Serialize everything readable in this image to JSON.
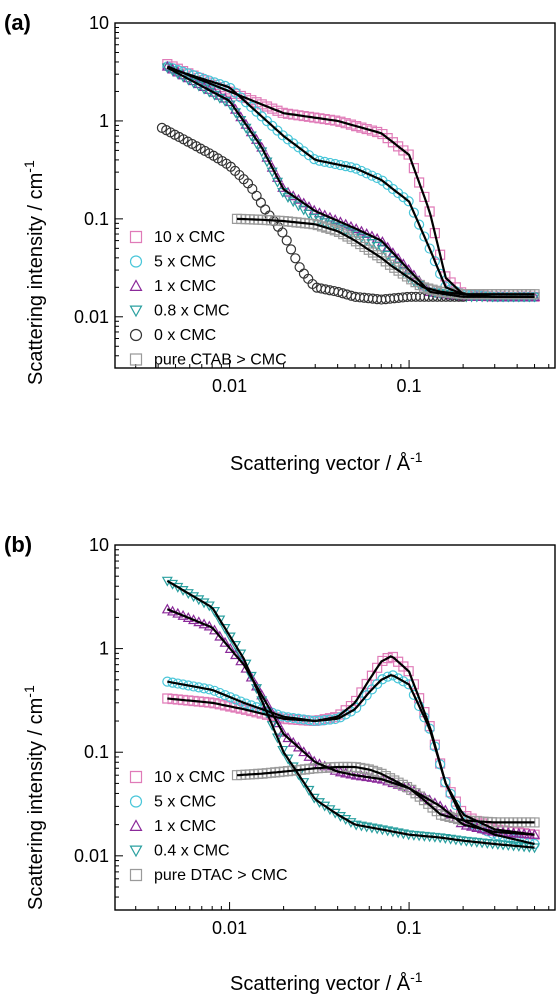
{
  "chart_data": [
    {
      "type": "scatter",
      "panel_label": "(a)",
      "xlabel": "Scattering vector / Å",
      "xlabel_sup": "-1",
      "ylabel": "Scattering intensity / cm",
      "ylabel_sup": "-1",
      "x_scale": "log",
      "y_scale": "log",
      "xlim": [
        0.0023,
        0.65
      ],
      "ylim": [
        0.003,
        10
      ],
      "x_ticks": [
        0.01,
        0.1
      ],
      "x_tick_labels": [
        "0.01",
        "0.1"
      ],
      "y_ticks": [
        0.01,
        0.1,
        1,
        10
      ],
      "y_tick_labels": [
        "0.01",
        "0.1",
        "1",
        "10"
      ],
      "legend_position": "bottom-left",
      "series": [
        {
          "name": "10 x CMC",
          "marker": "square",
          "color": "#e07bb8",
          "x": [
            0.0045,
            0.01,
            0.02,
            0.04,
            0.07,
            0.1,
            0.13,
            0.16,
            0.2,
            0.3,
            0.5
          ],
          "y": [
            3.8,
            2.0,
            1.2,
            1.0,
            0.75,
            0.45,
            0.12,
            0.025,
            0.017,
            0.016,
            0.016
          ]
        },
        {
          "name": "5 x CMC",
          "marker": "circle",
          "color": "#49c6d9",
          "x": [
            0.0045,
            0.01,
            0.02,
            0.03,
            0.05,
            0.07,
            0.1,
            0.13,
            0.16,
            0.2,
            0.3,
            0.5
          ],
          "y": [
            3.6,
            2.2,
            0.7,
            0.4,
            0.33,
            0.25,
            0.15,
            0.05,
            0.02,
            0.017,
            0.016,
            0.016
          ]
        },
        {
          "name": "1 x CMC",
          "marker": "triangle-up",
          "color": "#8b2a9a",
          "x": [
            0.0045,
            0.01,
            0.015,
            0.02,
            0.03,
            0.05,
            0.07,
            0.1,
            0.13,
            0.2,
            0.5
          ],
          "y": [
            3.6,
            1.6,
            0.55,
            0.2,
            0.12,
            0.08,
            0.06,
            0.03,
            0.018,
            0.016,
            0.016
          ]
        },
        {
          "name": "0.8  x CMC",
          "marker": "triangle-down",
          "color": "#2aa0a0",
          "x": [
            0.0045,
            0.01,
            0.015,
            0.02,
            0.03,
            0.05,
            0.07,
            0.1,
            0.13,
            0.2,
            0.5
          ],
          "y": [
            3.5,
            1.5,
            0.5,
            0.18,
            0.1,
            0.07,
            0.05,
            0.025,
            0.018,
            0.016,
            0.016
          ]
        },
        {
          "name": "0 x CMC",
          "marker": "circle",
          "color": "#333333",
          "x": [
            0.0042,
            0.006,
            0.008,
            0.01,
            0.013,
            0.016,
            0.02,
            0.025,
            0.03,
            0.04,
            0.05,
            0.07,
            0.1,
            0.15,
            0.2
          ],
          "y": [
            0.85,
            0.6,
            0.45,
            0.35,
            0.22,
            0.12,
            0.07,
            0.03,
            0.02,
            0.018,
            0.016,
            0.015,
            0.016,
            0.016,
            0.016
          ]
        },
        {
          "name": "pure CTAB > CMC",
          "marker": "square",
          "color": "#9a9a9a",
          "x": [
            0.011,
            0.015,
            0.02,
            0.03,
            0.04,
            0.05,
            0.06,
            0.07,
            0.08,
            0.1,
            0.12,
            0.15,
            0.2,
            0.3,
            0.5
          ],
          "y": [
            0.1,
            0.098,
            0.095,
            0.088,
            0.075,
            0.06,
            0.048,
            0.04,
            0.033,
            0.025,
            0.02,
            0.018,
            0.017,
            0.017,
            0.017
          ]
        }
      ],
      "fits": [
        {
          "x": [
            0.0045,
            0.01,
            0.02,
            0.04,
            0.07,
            0.1,
            0.13,
            0.16,
            0.2,
            0.3,
            0.5
          ],
          "y": [
            3.6,
            2.0,
            1.2,
            1.0,
            0.75,
            0.45,
            0.12,
            0.025,
            0.017,
            0.016,
            0.016
          ]
        },
        {
          "x": [
            0.0045,
            0.01,
            0.02,
            0.03,
            0.05,
            0.07,
            0.1,
            0.13,
            0.16,
            0.2,
            0.3,
            0.5
          ],
          "y": [
            3.5,
            2.2,
            0.7,
            0.4,
            0.33,
            0.25,
            0.15,
            0.05,
            0.02,
            0.017,
            0.016,
            0.016
          ]
        },
        {
          "x": [
            0.0045,
            0.01,
            0.015,
            0.02,
            0.03,
            0.05,
            0.07,
            0.1,
            0.13,
            0.2,
            0.5
          ],
          "y": [
            3.5,
            1.6,
            0.55,
            0.2,
            0.12,
            0.08,
            0.06,
            0.03,
            0.018,
            0.016,
            0.016
          ]
        },
        {
          "x": [
            0.011,
            0.015,
            0.02,
            0.03,
            0.04,
            0.05,
            0.06,
            0.07,
            0.08,
            0.1,
            0.12,
            0.15,
            0.2,
            0.3,
            0.5
          ],
          "y": [
            0.1,
            0.098,
            0.095,
            0.088,
            0.075,
            0.06,
            0.048,
            0.04,
            0.033,
            0.025,
            0.02,
            0.018,
            0.017,
            0.017,
            0.017
          ]
        }
      ]
    },
    {
      "type": "scatter",
      "panel_label": "(b)",
      "xlabel": "Scattering vector / Å",
      "xlabel_sup": "-1",
      "ylabel": "Scattering intensity / cm",
      "ylabel_sup": "-1",
      "x_scale": "log",
      "y_scale": "log",
      "xlim": [
        0.0023,
        0.65
      ],
      "ylim": [
        0.003,
        10
      ],
      "x_ticks": [
        0.01,
        0.1
      ],
      "x_tick_labels": [
        "0.01",
        "0.1"
      ],
      "y_ticks": [
        0.01,
        0.1,
        1,
        10
      ],
      "y_tick_labels": [
        "0.01",
        "0.1",
        "1",
        "10"
      ],
      "legend_position": "bottom-left",
      "series": [
        {
          "name": "10 x CMC",
          "marker": "square",
          "color": "#e07bb8",
          "x": [
            0.0045,
            0.008,
            0.012,
            0.02,
            0.03,
            0.04,
            0.05,
            0.06,
            0.07,
            0.08,
            0.1,
            0.13,
            0.16,
            0.2,
            0.3,
            0.5
          ],
          "y": [
            0.33,
            0.3,
            0.26,
            0.21,
            0.2,
            0.22,
            0.3,
            0.5,
            0.75,
            0.85,
            0.6,
            0.18,
            0.05,
            0.025,
            0.018,
            0.016
          ]
        },
        {
          "name": "5 x CMC",
          "marker": "circle",
          "color": "#49c6d9",
          "x": [
            0.0045,
            0.008,
            0.012,
            0.02,
            0.03,
            0.04,
            0.05,
            0.06,
            0.07,
            0.08,
            0.1,
            0.13,
            0.16,
            0.2,
            0.3,
            0.5
          ],
          "y": [
            0.48,
            0.4,
            0.3,
            0.22,
            0.2,
            0.21,
            0.26,
            0.38,
            0.5,
            0.56,
            0.45,
            0.17,
            0.05,
            0.022,
            0.016,
            0.013
          ]
        },
        {
          "name": "1 x CMC",
          "marker": "triangle-up",
          "color": "#8b2a9a",
          "x": [
            0.0045,
            0.008,
            0.012,
            0.016,
            0.02,
            0.03,
            0.04,
            0.05,
            0.07,
            0.1,
            0.15,
            0.2,
            0.3,
            0.5
          ],
          "y": [
            2.4,
            1.6,
            0.7,
            0.3,
            0.15,
            0.08,
            0.065,
            0.06,
            0.055,
            0.045,
            0.03,
            0.02,
            0.017,
            0.016
          ]
        },
        {
          "name": "0.4 x CMC",
          "marker": "triangle-down",
          "color": "#2aa0a0",
          "x": [
            0.0045,
            0.008,
            0.012,
            0.016,
            0.02,
            0.03,
            0.04,
            0.05,
            0.07,
            0.1,
            0.15,
            0.2,
            0.3,
            0.5
          ],
          "y": [
            4.5,
            2.5,
            0.8,
            0.25,
            0.1,
            0.035,
            0.025,
            0.02,
            0.018,
            0.016,
            0.015,
            0.014,
            0.013,
            0.012
          ]
        },
        {
          "name": "pure DTAC > CMC",
          "marker": "square",
          "color": "#9a9a9a",
          "x": [
            0.011,
            0.015,
            0.02,
            0.03,
            0.04,
            0.05,
            0.06,
            0.07,
            0.08,
            0.1,
            0.12,
            0.15,
            0.2,
            0.3,
            0.5
          ],
          "y": [
            0.06,
            0.062,
            0.065,
            0.07,
            0.072,
            0.072,
            0.068,
            0.062,
            0.055,
            0.045,
            0.035,
            0.025,
            0.022,
            0.021,
            0.021
          ]
        }
      ],
      "fits": [
        {
          "x": [
            0.0045,
            0.008,
            0.012,
            0.02,
            0.03,
            0.04,
            0.05,
            0.06,
            0.07,
            0.08,
            0.1,
            0.13,
            0.16,
            0.2,
            0.3,
            0.5
          ],
          "y": [
            0.33,
            0.3,
            0.26,
            0.21,
            0.2,
            0.22,
            0.3,
            0.5,
            0.75,
            0.85,
            0.6,
            0.18,
            0.05,
            0.025,
            0.018,
            0.016
          ]
        },
        {
          "x": [
            0.0045,
            0.008,
            0.012,
            0.02,
            0.03,
            0.04,
            0.05,
            0.06,
            0.07,
            0.08,
            0.1,
            0.13,
            0.16,
            0.2,
            0.3,
            0.5
          ],
          "y": [
            0.48,
            0.4,
            0.3,
            0.22,
            0.2,
            0.21,
            0.26,
            0.38,
            0.5,
            0.56,
            0.45,
            0.17,
            0.05,
            0.022,
            0.016,
            0.013
          ]
        },
        {
          "x": [
            0.0045,
            0.008,
            0.012,
            0.016,
            0.02,
            0.03,
            0.04,
            0.05,
            0.07,
            0.1,
            0.15,
            0.2,
            0.3,
            0.5
          ],
          "y": [
            2.4,
            1.6,
            0.7,
            0.3,
            0.15,
            0.08,
            0.065,
            0.06,
            0.055,
            0.045,
            0.03,
            0.02,
            0.017,
            0.016
          ]
        },
        {
          "x": [
            0.0045,
            0.008,
            0.012,
            0.016,
            0.02,
            0.03,
            0.04,
            0.05,
            0.07,
            0.1,
            0.15,
            0.2,
            0.3,
            0.5
          ],
          "y": [
            4.5,
            2.5,
            0.8,
            0.25,
            0.1,
            0.035,
            0.025,
            0.02,
            0.018,
            0.016,
            0.015,
            0.014,
            0.013,
            0.012
          ]
        },
        {
          "x": [
            0.011,
            0.015,
            0.02,
            0.03,
            0.04,
            0.05,
            0.06,
            0.07,
            0.08,
            0.1,
            0.12,
            0.15,
            0.2,
            0.3,
            0.5
          ],
          "y": [
            0.06,
            0.062,
            0.065,
            0.07,
            0.072,
            0.072,
            0.068,
            0.062,
            0.055,
            0.045,
            0.035,
            0.025,
            0.022,
            0.021,
            0.021
          ]
        }
      ]
    }
  ]
}
